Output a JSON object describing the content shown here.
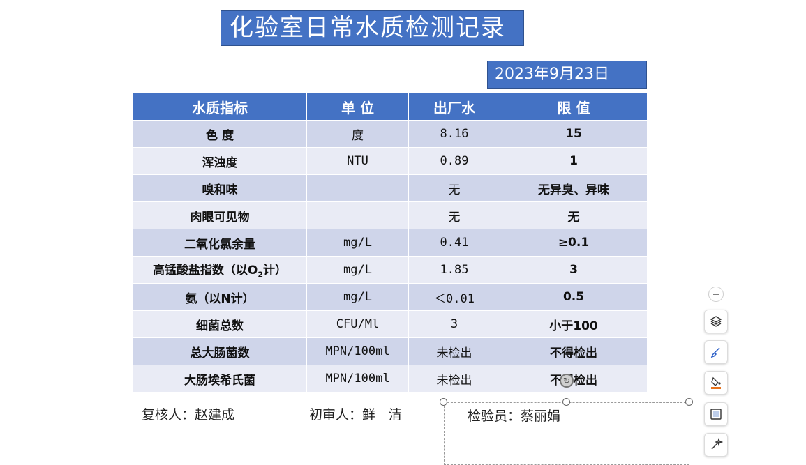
{
  "title": "化验室日常水质检测记录",
  "date": "2023年9月23日",
  "table": {
    "headers": [
      "水质指标",
      "单 位",
      "出厂水",
      "限 值"
    ],
    "rows": [
      {
        "indicator": "色 度",
        "unit": "度",
        "value": "8.16",
        "limit": "15"
      },
      {
        "indicator": "浑浊度",
        "unit": "NTU",
        "value": "0.89",
        "limit": "1"
      },
      {
        "indicator": "嗅和味",
        "unit": "",
        "value": "无",
        "limit": "无异臭、异味"
      },
      {
        "indicator": "肉眼可见物",
        "unit": "",
        "value": "无",
        "limit": "无"
      },
      {
        "indicator": "二氧化氯余量",
        "unit": "mg/L",
        "value": "0.41",
        "limit": "≥0.1"
      },
      {
        "indicator_pre": "高锰酸盐指数（以O",
        "indicator_sub": "2",
        "indicator_post": "计）",
        "unit": "mg/L",
        "value": "1.85",
        "limit": "3"
      },
      {
        "indicator": "氨（以N计）",
        "unit": "mg/L",
        "value": "＜0.01",
        "limit": "0.5"
      },
      {
        "indicator": "细菌总数",
        "unit": "CFU/Ml",
        "value": "3",
        "limit": "小于100"
      },
      {
        "indicator": "总大肠菌数",
        "unit": "MPN/100ml",
        "value": "未检出",
        "limit": "不得检出"
      },
      {
        "indicator": "大肠埃希氏菌",
        "unit": "MPN/100ml",
        "value": "未检出",
        "limit": "不得检出"
      }
    ]
  },
  "signatures": {
    "reviewer": "复核人：赵建成",
    "first_reviewer": "初审人：鲜　清",
    "inspector": "检验员：蔡丽娟"
  },
  "toolbar": {
    "icons": [
      "collapse-icon",
      "layers-icon",
      "brush-icon",
      "fill-color-icon",
      "border-icon",
      "magic-icon"
    ]
  },
  "colors": {
    "header_blue": "#4472c4",
    "row_odd": "#cfd5ea",
    "row_even": "#e9ebf5"
  }
}
